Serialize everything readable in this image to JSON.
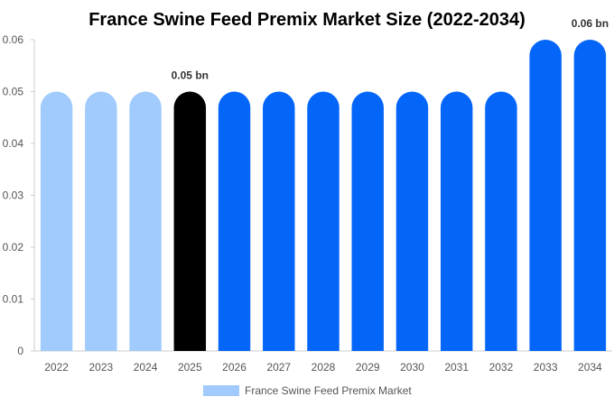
{
  "chart_data": {
    "type": "bar",
    "title": "France Swine Feed Premix Market Size (2022-2034)",
    "xlabel": "",
    "ylabel": "",
    "categories": [
      "2022",
      "2023",
      "2024",
      "2025",
      "2026",
      "2027",
      "2028",
      "2029",
      "2030",
      "2031",
      "2032",
      "2033",
      "2034"
    ],
    "series": [
      {
        "name": "France Swine Feed Premix Market",
        "values": [
          0.05,
          0.05,
          0.05,
          0.05,
          0.05,
          0.05,
          0.05,
          0.05,
          0.05,
          0.05,
          0.05,
          0.06,
          0.06
        ]
      }
    ],
    "bar_colors": [
      "#a0cbfc",
      "#a0cbfc",
      "#a0cbfc",
      "#000000",
      "#0466f9",
      "#0466f9",
      "#0466f9",
      "#0466f9",
      "#0466f9",
      "#0466f9",
      "#0466f9",
      "#0466f9",
      "#0466f9"
    ],
    "data_labels": [
      {
        "index": 3,
        "text": "0.05 bn"
      },
      {
        "index": 12,
        "text": "0.06 bn"
      }
    ],
    "ylim": [
      0,
      0.06
    ],
    "yticks": [
      0,
      0.01,
      0.02,
      0.03,
      0.04,
      0.05,
      0.06
    ],
    "ytick_labels": [
      "0",
      "0.01",
      "0.02",
      "0.03",
      "0.04",
      "0.05",
      "0.06"
    ],
    "grid": false,
    "legend": {
      "position": "bottom",
      "color": "#a0cbfc"
    }
  }
}
